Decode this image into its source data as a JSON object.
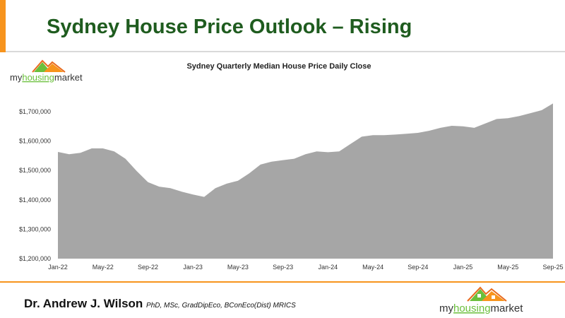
{
  "slide": {
    "title": "Sydney House Price Outlook – Rising",
    "author": "Dr. Andrew J. Wilson",
    "credentials": "PhD, MSc, GradDipEco, BConEco(Dist) MRICS",
    "logo_text": "myhousingmarket",
    "colors": {
      "accent": "#f7941d",
      "title": "#1f5c1f",
      "area": "#a6a6a6",
      "logo_green": "#6abf3b"
    }
  },
  "chart_data": {
    "type": "area",
    "title": "Sydney Quarterly Median House Price Daily Close",
    "xlabel": "",
    "ylabel": "",
    "ylim": [
      1200000,
      1750000
    ],
    "y_ticks": [
      1200000,
      1300000,
      1400000,
      1500000,
      1600000,
      1700000
    ],
    "y_tick_labels": [
      "$1,200,000",
      "$1,300,000",
      "$1,400,000",
      "$1,500,000",
      "$1,600,000",
      "$1,700,000"
    ],
    "x_tick_labels": [
      "Jan-22",
      "May-22",
      "Sep-22",
      "Jan-23",
      "May-23",
      "Sep-23",
      "Jan-24",
      "May-24",
      "Sep-24",
      "Jan-25",
      "May-25",
      "Sep-25"
    ],
    "x": [
      "Jan-22",
      "Feb-22",
      "Mar-22",
      "Apr-22",
      "May-22",
      "Jun-22",
      "Jul-22",
      "Aug-22",
      "Sep-22",
      "Oct-22",
      "Nov-22",
      "Dec-22",
      "Jan-23",
      "Feb-23",
      "Mar-23",
      "Apr-23",
      "May-23",
      "Jun-23",
      "Jul-23",
      "Aug-23",
      "Sep-23",
      "Oct-23",
      "Nov-23",
      "Dec-23",
      "Jan-24",
      "Feb-24",
      "Mar-24",
      "Apr-24",
      "May-24",
      "Jun-24",
      "Jul-24",
      "Aug-24",
      "Sep-24",
      "Oct-24",
      "Nov-24",
      "Dec-24",
      "Jan-25",
      "Feb-25",
      "Mar-25",
      "Apr-25",
      "May-25",
      "Jun-25",
      "Jul-25",
      "Aug-25",
      "Sep-25"
    ],
    "values": [
      1563000,
      1555000,
      1560000,
      1575000,
      1575000,
      1565000,
      1540000,
      1498000,
      1460000,
      1445000,
      1440000,
      1428000,
      1418000,
      1410000,
      1440000,
      1455000,
      1465000,
      1490000,
      1520000,
      1530000,
      1535000,
      1540000,
      1555000,
      1565000,
      1562000,
      1565000,
      1590000,
      1615000,
      1620000,
      1620000,
      1622000,
      1625000,
      1628000,
      1635000,
      1645000,
      1652000,
      1650000,
      1645000,
      1660000,
      1675000,
      1678000,
      1685000,
      1695000,
      1705000,
      1728000
    ],
    "grid": false,
    "legend": "none"
  }
}
